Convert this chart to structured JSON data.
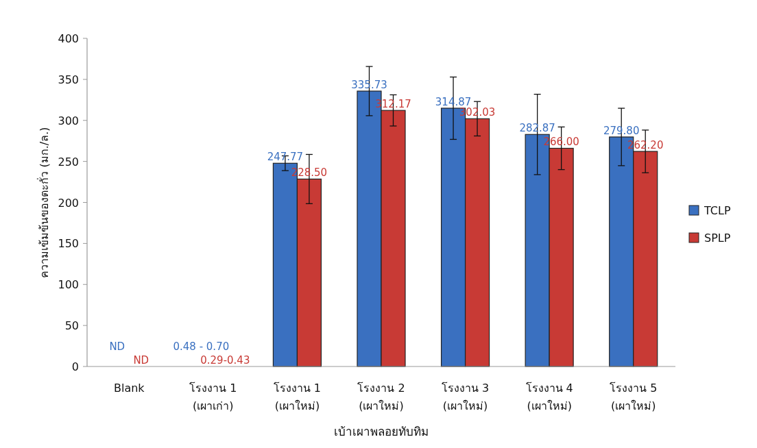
{
  "chart_data": {
    "type": "bar",
    "xlabel": "เบ้าเผาพลอยทับทิม",
    "ylabel": "ความเข้มข้นของตะกั่ว (มก./ล.)",
    "categories": [
      "Blank",
      "โรงงาน 1 (เผาเก่า)",
      "โรงงาน 1 (เผาใหม่)",
      "โรงงาน 2 (เผาใหม่)",
      "โรงงาน 3 (เผาใหม่)",
      "โรงงาน 4 (เผาใหม่)",
      "โรงงาน 5 (เผาใหม่)"
    ],
    "series": [
      {
        "name": "TCLP",
        "color": "#3a70c0",
        "values": [
          null,
          null,
          247.77,
          335.73,
          314.87,
          282.87,
          279.8
        ],
        "errors": [
          null,
          null,
          9,
          30,
          38,
          49,
          35
        ],
        "value_labels": [
          "ND",
          "0.48 - 0.70",
          "247.77",
          "335.73",
          "314.87",
          "282.87",
          "279.80"
        ]
      },
      {
        "name": "SPLP",
        "color": "#c83a35",
        "values": [
          null,
          null,
          228.5,
          312.17,
          302.03,
          266.0,
          262.2
        ],
        "errors": [
          null,
          null,
          30,
          19,
          21,
          26,
          26
        ],
        "value_labels": [
          "ND",
          "0.29-0.43",
          "228.50",
          "312.17",
          "302.03",
          "266.00",
          "262.20"
        ]
      }
    ],
    "ylim": [
      0,
      400
    ],
    "yticks": [
      0,
      50,
      100,
      150,
      200,
      250,
      300,
      350,
      400
    ],
    "legend": "right",
    "grid": false
  }
}
